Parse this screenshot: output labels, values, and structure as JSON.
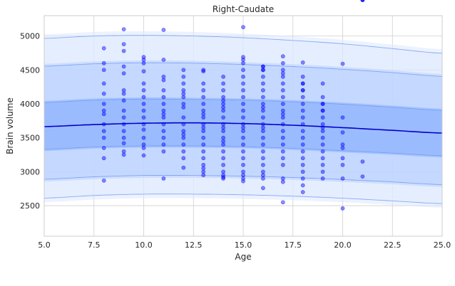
{
  "chart_data": {
    "type": "scatter",
    "title": "Right-Caudate",
    "xlabel": "Age",
    "ylabel": "Brain volume",
    "xlim": [
      5.0,
      25.0
    ],
    "ylim": [
      2050,
      5300
    ],
    "x_ticks": [
      "5.0",
      "7.5",
      "10.0",
      "12.5",
      "15.0",
      "17.5",
      "20.0",
      "22.5",
      "25.0"
    ],
    "x_tick_values": [
      5.0,
      7.5,
      10.0,
      12.5,
      15.0,
      17.5,
      20.0,
      22.5,
      25.0
    ],
    "y_ticks": [
      "2500",
      "3000",
      "3500",
      "4000",
      "4500",
      "5000"
    ],
    "y_tick_values": [
      2500,
      3000,
      3500,
      4000,
      4500,
      5000
    ],
    "grid": true,
    "colors": {
      "points": "#0000ff",
      "median": "#0000cc",
      "band_outer": "#dce8ff",
      "band_mid": "#b9d0ff",
      "band_inner": "#8cb2ff",
      "edge": "#6b98f0"
    },
    "centile_curves": {
      "x": [
        5,
        7.5,
        10,
        12.5,
        15,
        17.5,
        20,
        22.5,
        25
      ],
      "median": [
        3665,
        3695,
        3715,
        3720,
        3710,
        3685,
        3650,
        3610,
        3570
      ],
      "bands": [
        {
          "name": "outer",
          "lower": [
            2610,
            2650,
            2670,
            2670,
            2660,
            2640,
            2610,
            2570,
            2530
          ],
          "upper": [
            4965,
            5000,
            5010,
            5000,
            4975,
            4935,
            4885,
            4815,
            4745
          ]
        },
        {
          "name": "middle",
          "lower": [
            2890,
            2925,
            2945,
            2945,
            2935,
            2915,
            2885,
            2850,
            2810
          ],
          "upper": [
            4555,
            4590,
            4605,
            4600,
            4580,
            4550,
            4510,
            4460,
            4405
          ]
        },
        {
          "name": "inner",
          "lower": [
            3330,
            3365,
            3380,
            3380,
            3370,
            3345,
            3310,
            3275,
            3235
          ],
          "upper": [
            4020,
            4055,
            4070,
            4065,
            4055,
            4030,
            3995,
            3950,
            3905
          ]
        }
      ]
    },
    "points_x": [
      8,
      8,
      8,
      8,
      8,
      8,
      8,
      8,
      8,
      8,
      8,
      8,
      8,
      8,
      9,
      9,
      9,
      9,
      9,
      9,
      9,
      9,
      9,
      9,
      9,
      9,
      9,
      9,
      9,
      9,
      10,
      10,
      10,
      10,
      10,
      10,
      10,
      10,
      10,
      10,
      10,
      10,
      10,
      10,
      10,
      10,
      11,
      11,
      11,
      11,
      11,
      11,
      11,
      11,
      11,
      11,
      11,
      11,
      11,
      11,
      11,
      11,
      12,
      12,
      12,
      12,
      12,
      12,
      12,
      12,
      12,
      12,
      12,
      12,
      12,
      12,
      12,
      12,
      12,
      13,
      13,
      13,
      13,
      13,
      13,
      13,
      13,
      13,
      13,
      13,
      13,
      13,
      13,
      13,
      13,
      13,
      13,
      13,
      13,
      14,
      14,
      14,
      14,
      14,
      14,
      14,
      14,
      14,
      14,
      14,
      14,
      14,
      14,
      14,
      14,
      14,
      14,
      14,
      14,
      14,
      14,
      15,
      15,
      15,
      15,
      15,
      15,
      15,
      15,
      15,
      15,
      15,
      15,
      15,
      15,
      15,
      15,
      15,
      15,
      15,
      15,
      15,
      15,
      15,
      15,
      16,
      16,
      16,
      16,
      16,
      16,
      16,
      16,
      16,
      16,
      16,
      16,
      16,
      16,
      16,
      16,
      16,
      16,
      16,
      16,
      16,
      16,
      16,
      16,
      17,
      17,
      17,
      17,
      17,
      17,
      17,
      17,
      17,
      17,
      17,
      17,
      17,
      17,
      17,
      17,
      17,
      17,
      17,
      17,
      17,
      17,
      18,
      18,
      18,
      18,
      18,
      18,
      18,
      18,
      18,
      18,
      18,
      18,
      18,
      18,
      18,
      18,
      18,
      18,
      18,
      18,
      18,
      19,
      19,
      19,
      19,
      19,
      19,
      19,
      19,
      19,
      19,
      19,
      19,
      19,
      19,
      19,
      19,
      19,
      20,
      20,
      20,
      20,
      20,
      20,
      20,
      20,
      20,
      21,
      21,
      21,
      21,
      21
    ],
    "points_y": [
      4820,
      4600,
      4500,
      4300,
      4150,
      4000,
      3900,
      3850,
      3700,
      3600,
      3500,
      3350,
      3200,
      2870,
      5100,
      4880,
      4780,
      4550,
      4450,
      4200,
      4150,
      4050,
      3900,
      3800,
      3700,
      3600,
      3500,
      3420,
      3300,
      3250,
      4690,
      4650,
      4600,
      4480,
      4300,
      4200,
      4100,
      4000,
      3900,
      3800,
      3700,
      3620,
      3500,
      3400,
      3350,
      3240,
      5090,
      4650,
      4400,
      4350,
      4200,
      4100,
      4000,
      3900,
      3850,
      3800,
      3700,
      3600,
      3500,
      3400,
      3300,
      2900,
      4500,
      4400,
      4300,
      4200,
      4150,
      4100,
      4000,
      3950,
      3800,
      3700,
      3600,
      3550,
      3500,
      3400,
      3300,
      3200,
      3060,
      4500,
      4480,
      4300,
      4200,
      4100,
      4000,
      3900,
      3850,
      3800,
      3700,
      3650,
      3600,
      3500,
      3400,
      3300,
      3200,
      3100,
      3050,
      3000,
      2950,
      4400,
      4300,
      4200,
      4100,
      4050,
      4000,
      3950,
      3900,
      3800,
      3700,
      3650,
      3600,
      3500,
      3450,
      3400,
      3300,
      3200,
      3100,
      3000,
      2950,
      2920,
      2900,
      4690,
      4600,
      4500,
      4400,
      4300,
      4200,
      4100,
      4000,
      3900,
      3800,
      3700,
      3650,
      3600,
      3500,
      3400,
      3300,
      3200,
      3100,
      3000,
      2950,
      2900,
      2860,
      5130,
      4650,
      4550,
      4500,
      4400,
      4300,
      4200,
      4100,
      4000,
      3950,
      3900,
      3800,
      3700,
      3650,
      3600,
      3500,
      3400,
      3300,
      3200,
      3100,
      3000,
      2950,
      2900,
      2760,
      4550,
      4500,
      4400,
      4300,
      4200,
      4100,
      4000,
      3900,
      3850,
      3800,
      3700,
      3600,
      3500,
      3400,
      3300,
      3200,
      3100,
      2900,
      2850,
      2550,
      4700,
      4600,
      4500,
      4450,
      4300,
      4200,
      4100,
      4000,
      3900,
      3800,
      3700,
      3600,
      3500,
      3400,
      3300,
      3200,
      3100,
      3000,
      2900,
      2800,
      2700,
      4610,
      4400,
      4300,
      4200,
      4100,
      4000,
      3900,
      3800,
      3700,
      3650,
      3600,
      3500,
      3400,
      3300,
      3200,
      3100,
      3000,
      2900,
      4300,
      4000,
      3900,
      3400,
      3350,
      3200,
      3100,
      2900,
      2460,
      4590,
      3800,
      3580,
      3150,
      2930
    ]
  }
}
